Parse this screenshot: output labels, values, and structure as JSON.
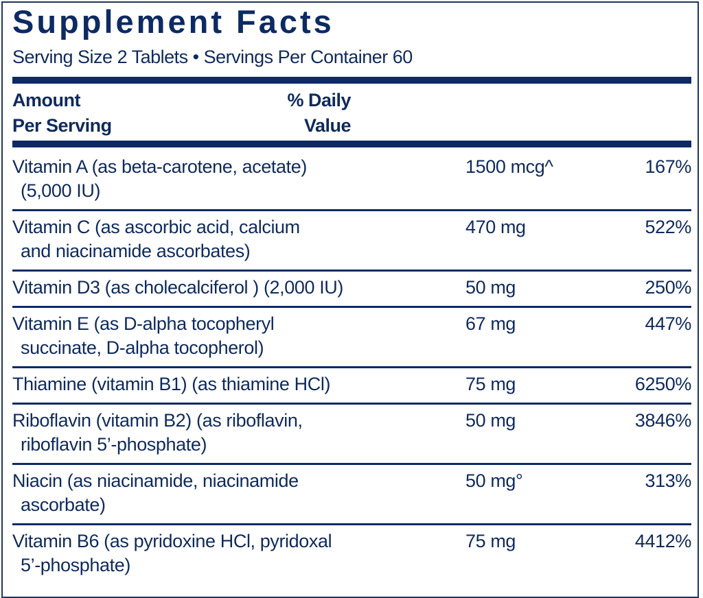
{
  "title": "Supplement Facts",
  "serving": "Serving Size 2 Tablets • Servings Per Container 60",
  "header": {
    "amount_line1": "Amount",
    "amount_line2": "Per Serving",
    "dv_line1": "% Daily",
    "dv_line2": "Value"
  },
  "rows": [
    {
      "name": "Vitamin A (as beta-carotene, acetate)",
      "name2": "(5,000 IU)",
      "amount": "1500 mcg^",
      "dv": "167%"
    },
    {
      "name": "Vitamin C (as ascorbic acid, calcium",
      "name2": "and niacinamide ascorbates)",
      "amount": "470 mg",
      "dv": "522%"
    },
    {
      "name": "Vitamin D3 (as cholecalciferol ) (2,000 IU)",
      "name2": "",
      "amount": "50 mg",
      "dv": "250%"
    },
    {
      "name": "Vitamin E (as D-alpha tocopheryl",
      "name2": "succinate, D-alpha tocopherol)",
      "amount": "67 mg",
      "dv": "447%"
    },
    {
      "name": "Thiamine (vitamin B1) (as thiamine HCl)",
      "name2": "",
      "amount": "75 mg",
      "dv": "6250%"
    },
    {
      "name": "Riboflavin (vitamin B2) (as riboflavin,",
      "name2": "riboflavin 5’-phosphate)",
      "amount": "50 mg",
      "dv": "3846%"
    },
    {
      "name": "Niacin (as niacinamide, niacinamide",
      "name2": "ascorbate)",
      "amount": "50 mg°",
      "dv": "313%"
    },
    {
      "name": "Vitamin B6 (as pyridoxine HCl, pyridoxal",
      "name2": "5’-phosphate)",
      "amount": "75 mg",
      "dv": "4412%"
    }
  ],
  "colors": {
    "ink": "#0f2a5c",
    "bar": "#0d2a63"
  }
}
